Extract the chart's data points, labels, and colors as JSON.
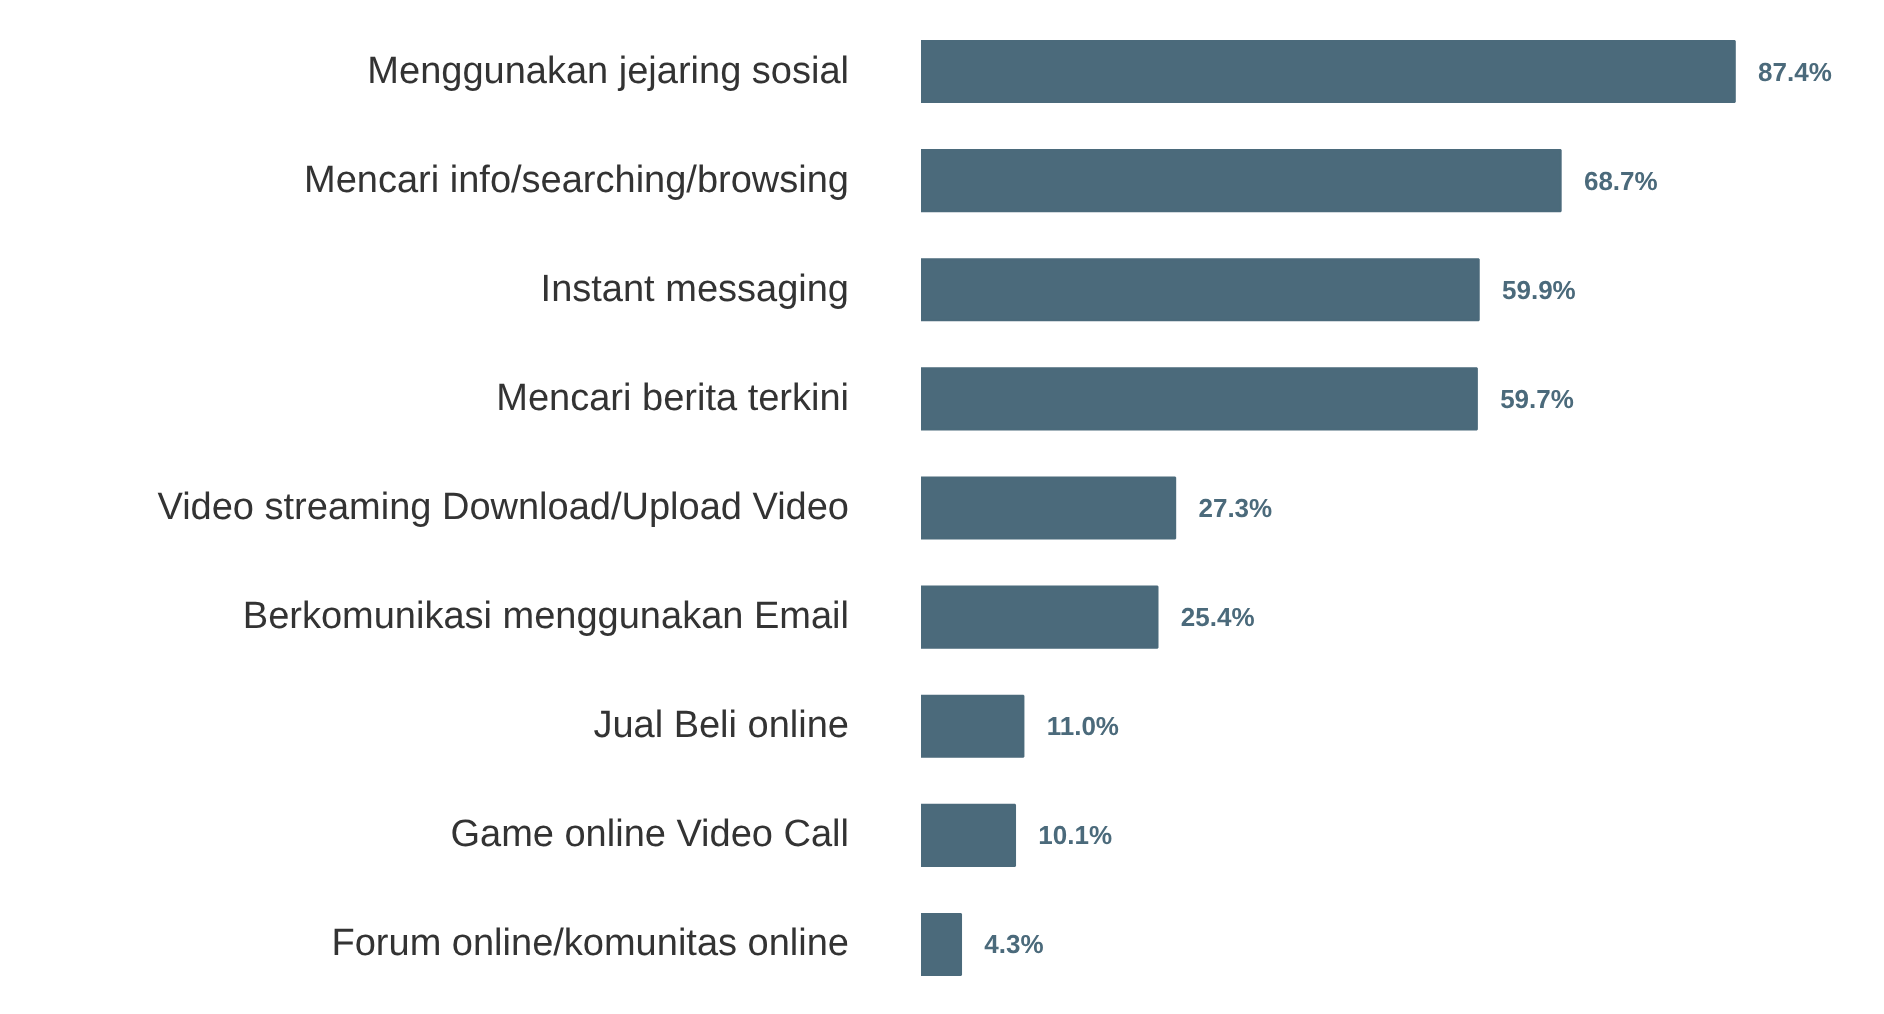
{
  "chart_data": {
    "type": "bar",
    "orientation": "horizontal",
    "categories": [
      "Menggunakan jejaring sosial",
      "Mencari info/searching/browsing",
      "Instant messaging",
      "Mencari berita terkini",
      "Video streaming Download/Upload Video",
      "Berkomunikasi menggunakan Email",
      "Jual Beli online",
      "Game online Video Call",
      "Forum online/komunitas online"
    ],
    "values": [
      87.4,
      68.7,
      59.9,
      59.7,
      27.3,
      25.4,
      11.0,
      10.1,
      4.3
    ],
    "value_labels": [
      "87.4%",
      "68.7%",
      "59.9%",
      "59.7%",
      "27.3%",
      "25.4%",
      "11.0%",
      "10.1%",
      "4.3%"
    ],
    "color": "#4b6a7b",
    "grid": false
  }
}
